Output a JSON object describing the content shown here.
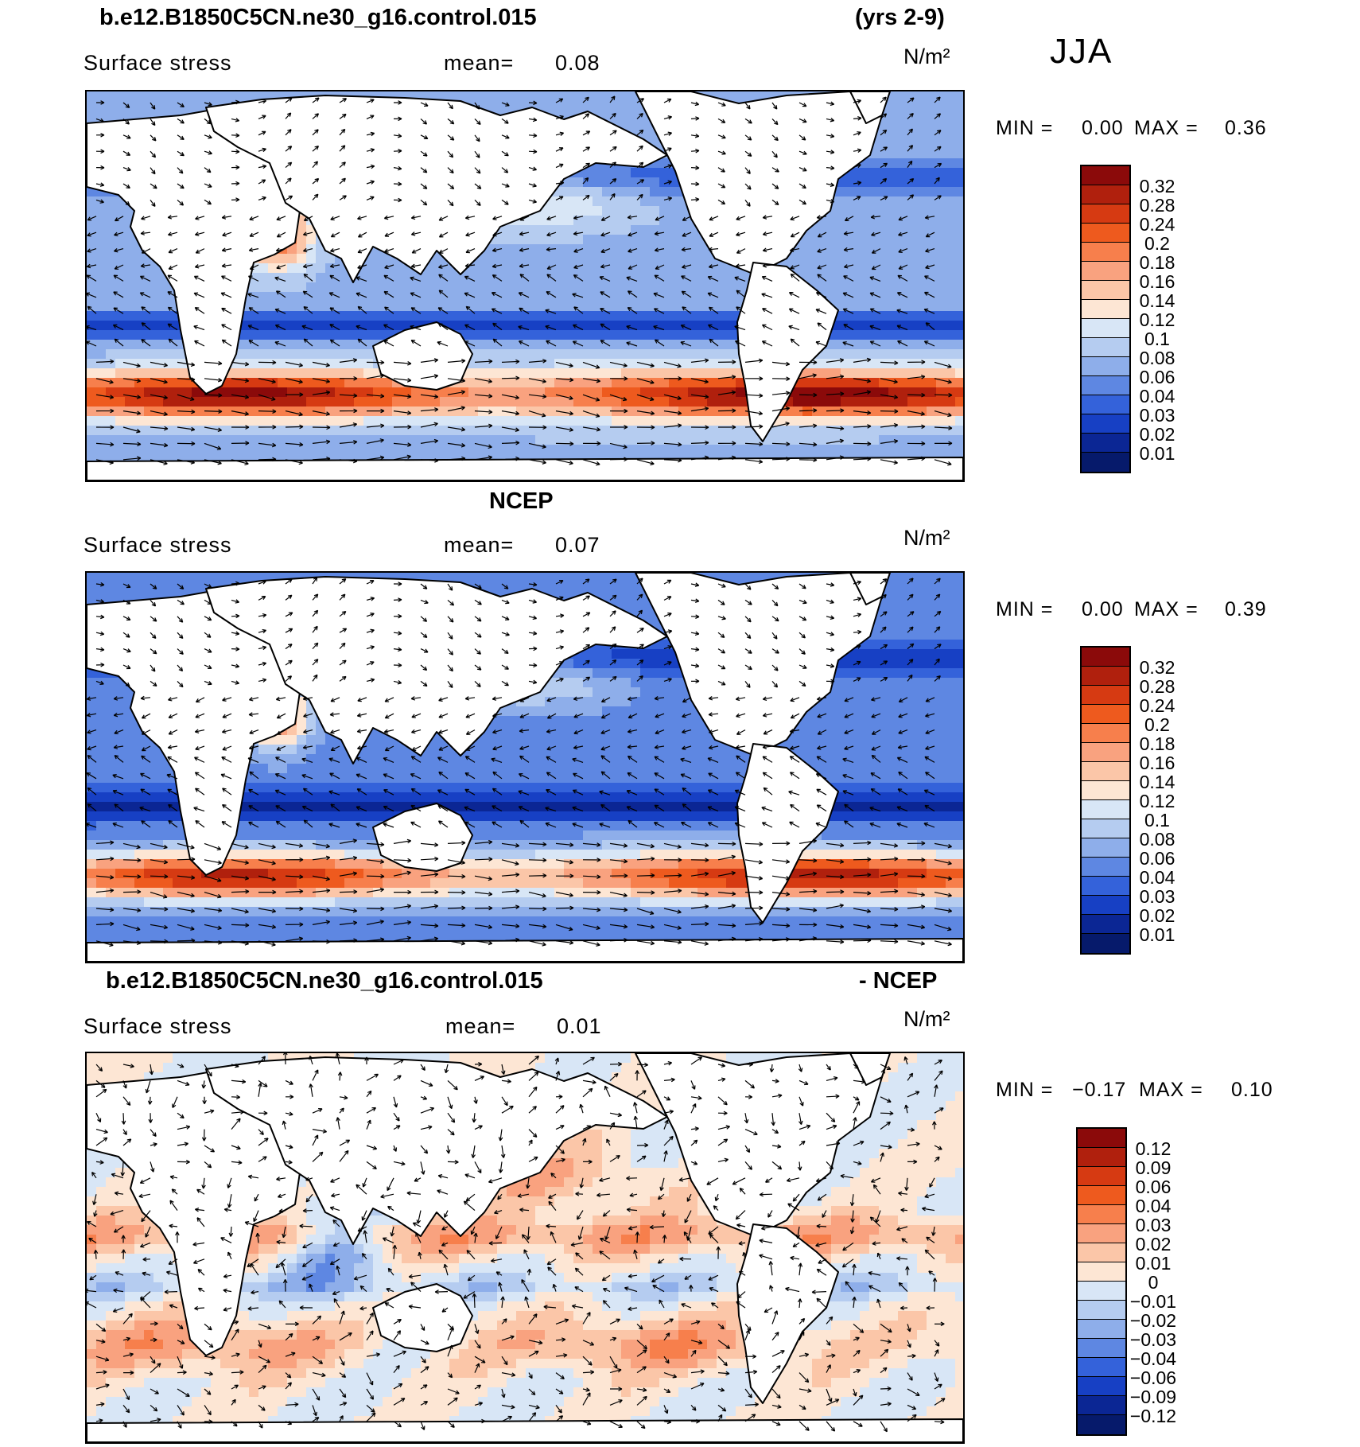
{
  "header": {
    "case_name": "b.e12.B1850C5CN.ne30_g16.control.015",
    "years": "(yrs 2-9)",
    "season": "JJA"
  },
  "panels": [
    {
      "id": "model",
      "title_left": "",
      "title_right": "",
      "variable": "Surface stress",
      "mean_label": "mean=",
      "mean_value": "0.08",
      "units": "N/m²",
      "min_label": "MIN =",
      "min_value": "0.00",
      "max_label": "MAX =",
      "max_value": "0.36",
      "colorbar_labels": [
        "0.32",
        "0.28",
        "0.24",
        "0.2",
        "0.18",
        "0.16",
        "0.14",
        "0.12",
        "0.1",
        "0.08",
        "0.06",
        "0.04",
        "0.03",
        "0.02",
        "0.01"
      ],
      "colorbar_colors": [
        "#8b0a0a",
        "#b0200d",
        "#d63a12",
        "#ee5a1e",
        "#f77f4c",
        "#f9a27f",
        "#fbc6a8",
        "#fde6d4",
        "#d8e6f6",
        "#b5ccf0",
        "#8eaeea",
        "#5e87e2",
        "#3462da",
        "#1740c4",
        "#0b2694",
        "#061a6b"
      ],
      "map_type": "positive"
    },
    {
      "id": "obs",
      "title_left": "NCEP",
      "title_right": "",
      "variable": "Surface stress",
      "mean_label": "mean=",
      "mean_value": "0.07",
      "units": "N/m²",
      "min_label": "MIN =",
      "min_value": "0.00",
      "max_label": "MAX =",
      "max_value": "0.39",
      "colorbar_labels": [
        "0.32",
        "0.28",
        "0.24",
        "0.2",
        "0.18",
        "0.16",
        "0.14",
        "0.12",
        "0.1",
        "0.08",
        "0.06",
        "0.04",
        "0.03",
        "0.02",
        "0.01"
      ],
      "colorbar_colors": [
        "#8b0a0a",
        "#b0200d",
        "#d63a12",
        "#ee5a1e",
        "#f77f4c",
        "#f9a27f",
        "#fbc6a8",
        "#fde6d4",
        "#d8e6f6",
        "#b5ccf0",
        "#8eaeea",
        "#5e87e2",
        "#3462da",
        "#1740c4",
        "#0b2694",
        "#061a6b"
      ],
      "map_type": "positive"
    },
    {
      "id": "diff",
      "title_left": "b.e12.B1850C5CN.ne30_g16.control.015",
      "title_right": "- NCEP",
      "variable": "Surface stress",
      "mean_label": "mean=",
      "mean_value": "0.01",
      "units": "N/m²",
      "min_label": "MIN =",
      "min_value": "−0.17",
      "max_label": "MAX =",
      "max_value": "0.10",
      "colorbar_labels": [
        "0.12",
        "0.09",
        "0.06",
        "0.04",
        "0.03",
        "0.02",
        "0.01",
        "0",
        "−0.01",
        "−0.02",
        "−0.03",
        "−0.04",
        "−0.06",
        "−0.09",
        "−0.12"
      ],
      "colorbar_colors": [
        "#8b0a0a",
        "#b0200d",
        "#d63a12",
        "#ee5a1e",
        "#f77f4c",
        "#f9a27f",
        "#fbc6a8",
        "#fde6d4",
        "#d8e6f6",
        "#b5ccf0",
        "#8eaeea",
        "#5e87e2",
        "#3462da",
        "#1740c4",
        "#0b2694",
        "#061a6b"
      ],
      "map_type": "diff"
    }
  ]
}
